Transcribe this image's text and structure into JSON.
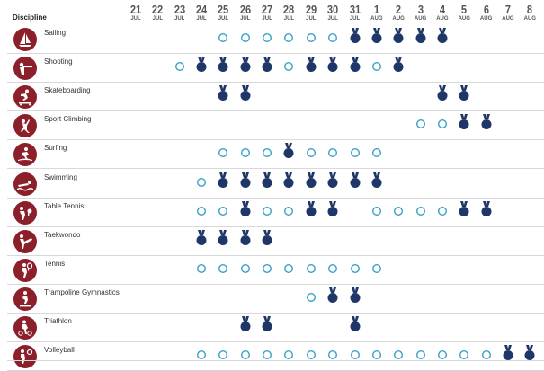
{
  "header": {
    "discipline_label": "Discipline"
  },
  "dates": [
    {
      "day": "21",
      "month": "JUL"
    },
    {
      "day": "22",
      "month": "JUL"
    },
    {
      "day": "23",
      "month": "JUL"
    },
    {
      "day": "24",
      "month": "JUL"
    },
    {
      "day": "25",
      "month": "JUL"
    },
    {
      "day": "26",
      "month": "JUL"
    },
    {
      "day": "27",
      "month": "JUL"
    },
    {
      "day": "28",
      "month": "JUL"
    },
    {
      "day": "29",
      "month": "JUL"
    },
    {
      "day": "30",
      "month": "JUL"
    },
    {
      "day": "31",
      "month": "JUL"
    },
    {
      "day": "1",
      "month": "AUG"
    },
    {
      "day": "2",
      "month": "AUG"
    },
    {
      "day": "3",
      "month": "AUG"
    },
    {
      "day": "4",
      "month": "AUG"
    },
    {
      "day": "5",
      "month": "AUG"
    },
    {
      "day": "6",
      "month": "AUG"
    },
    {
      "day": "7",
      "month": "AUG"
    },
    {
      "day": "8",
      "month": "AUG"
    }
  ],
  "legend": {
    "competition": "ring",
    "medal_event": "medal"
  },
  "colors": {
    "pictogram_bg": "#8b1f2a",
    "medal": "#1f3668",
    "ring": "#3aa0c9",
    "date_text": "#555555"
  },
  "rows": [
    {
      "name": "Sailing",
      "icon": "sailing-icon",
      "events": [
        "",
        "",
        "",
        "",
        "C",
        "C",
        "C",
        "C",
        "C",
        "C",
        "M",
        "M",
        "M",
        "M",
        "M",
        "",
        "",
        "",
        ""
      ]
    },
    {
      "name": "Shooting",
      "icon": "shooting-icon",
      "events": [
        "",
        "",
        "C",
        "M",
        "M",
        "M",
        "M",
        "C",
        "M",
        "M",
        "M",
        "C",
        "M",
        "",
        "",
        "",
        "",
        "",
        ""
      ]
    },
    {
      "name": "Skateboarding",
      "icon": "skateboarding-icon",
      "events": [
        "",
        "",
        "",
        "",
        "M",
        "M",
        "",
        "",
        "",
        "",
        "",
        "",
        "",
        "",
        "M",
        "M",
        "",
        "",
        ""
      ]
    },
    {
      "name": "Sport Climbing",
      "icon": "sport-climbing-icon",
      "events": [
        "",
        "",
        "",
        "",
        "",
        "",
        "",
        "",
        "",
        "",
        "",
        "",
        "",
        "C",
        "C",
        "M",
        "M",
        "",
        ""
      ]
    },
    {
      "name": "Surfing",
      "icon": "surfing-icon",
      "events": [
        "",
        "",
        "",
        "",
        "C",
        "C",
        "C",
        "M",
        "C",
        "C",
        "C",
        "C",
        "",
        "",
        "",
        "",
        "",
        "",
        ""
      ]
    },
    {
      "name": "Swimming",
      "icon": "swimming-icon",
      "events": [
        "",
        "",
        "",
        "C",
        "M",
        "M",
        "M",
        "M",
        "M",
        "M",
        "M",
        "M",
        "",
        "",
        "",
        "",
        "",
        "",
        ""
      ]
    },
    {
      "name": "Table Tennis",
      "icon": "table-tennis-icon",
      "events": [
        "",
        "",
        "",
        "C",
        "C",
        "M",
        "C",
        "C",
        "M",
        "M",
        "",
        "C",
        "C",
        "C",
        "C",
        "M",
        "M",
        "",
        ""
      ]
    },
    {
      "name": "Taekwondo",
      "icon": "taekwondo-icon",
      "events": [
        "",
        "",
        "",
        "M",
        "M",
        "M",
        "M",
        "",
        "",
        "",
        "",
        "",
        "",
        "",
        "",
        "",
        "",
        "",
        ""
      ]
    },
    {
      "name": "Tennis",
      "icon": "tennis-icon",
      "events": [
        "",
        "",
        "",
        "C",
        "C",
        "C",
        "C",
        "C",
        "C",
        "C",
        "C",
        "C",
        "",
        "",
        "",
        "",
        "",
        "",
        ""
      ]
    },
    {
      "name": "Trampoline Gymnastics",
      "icon": "trampoline-icon",
      "events": [
        "",
        "",
        "",
        "",
        "",
        "",
        "",
        "",
        "C",
        "M",
        "M",
        "",
        "",
        "",
        "",
        "",
        "",
        "",
        ""
      ]
    },
    {
      "name": "Triathlon",
      "icon": "triathlon-icon",
      "events": [
        "",
        "",
        "",
        "",
        "",
        "M",
        "M",
        "",
        "",
        "",
        "M",
        "",
        "",
        "",
        "",
        "",
        "",
        "",
        ""
      ]
    },
    {
      "name": "Volleyball",
      "icon": "volleyball-icon",
      "events": [
        "",
        "",
        "",
        "C",
        "C",
        "C",
        "C",
        "C",
        "C",
        "C",
        "C",
        "C",
        "C",
        "C",
        "C",
        "C",
        "C",
        "M",
        "M"
      ]
    }
  ]
}
